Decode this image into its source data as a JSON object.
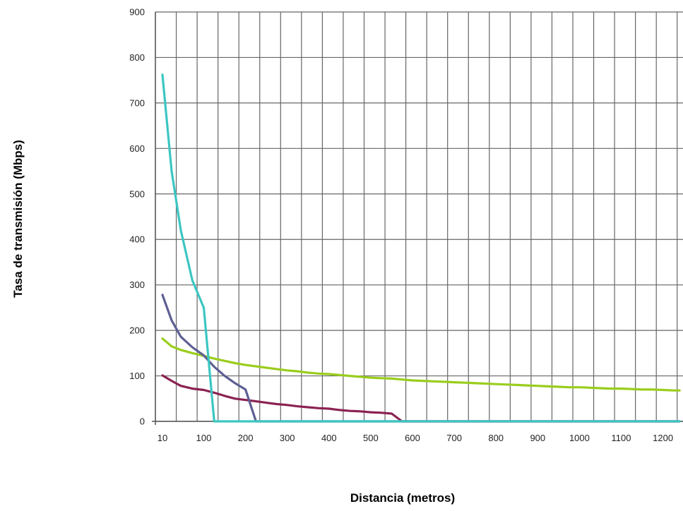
{
  "chart_data": {
    "type": "line",
    "title": "",
    "xlabel": "Distancia (metros)",
    "ylabel": "Tasa de transmisión (Mbps)",
    "ylim": [
      0,
      900
    ],
    "y_ticks": [
      0,
      100,
      200,
      300,
      400,
      500,
      600,
      700,
      800,
      900
    ],
    "x_tick_labels": [
      "10",
      "100",
      "200",
      "300",
      "400",
      "500",
      "600",
      "700",
      "800",
      "900",
      "1000",
      "1100",
      "1200"
    ],
    "x_ticks": [
      10,
      100,
      200,
      300,
      400,
      500,
      600,
      700,
      800,
      900,
      1000,
      1100,
      1200
    ],
    "xlim": [
      0,
      1240
    ],
    "grid": true,
    "legend": "none",
    "series": [
      {
        "color": "#9acd1c",
        "x": [
          10,
          30,
          50,
          75,
          100,
          125,
          150,
          175,
          200,
          225,
          250,
          275,
          300,
          325,
          350,
          375,
          400,
          425,
          450,
          475,
          500,
          525,
          550,
          575,
          600,
          625,
          650,
          675,
          700,
          725,
          750,
          775,
          800,
          825,
          850,
          875,
          900,
          925,
          950,
          975,
          1000,
          1025,
          1050,
          1075,
          1100,
          1125,
          1150,
          1175,
          1200,
          1225,
          1240
        ],
        "values": [
          182,
          165,
          157,
          150,
          144,
          138,
          133,
          128,
          124,
          121,
          118,
          115,
          112,
          110,
          107,
          105,
          104,
          102,
          100,
          98,
          96,
          95,
          94,
          92,
          90,
          89,
          88,
          87,
          86,
          85,
          84,
          83,
          82,
          81,
          80,
          79,
          78,
          77,
          76,
          75,
          75,
          74,
          73,
          72,
          72,
          71,
          70,
          70,
          69,
          68,
          68
        ]
      },
      {
        "color": "#8b2252",
        "x": [
          10,
          30,
          50,
          75,
          100,
          125,
          150,
          175,
          200,
          225,
          250,
          275,
          300,
          325,
          350,
          375,
          400,
          425,
          450,
          475,
          500,
          525,
          550,
          575,
          600,
          700,
          800,
          900,
          1000,
          1100,
          1240
        ],
        "values": [
          101,
          89,
          78,
          72,
          69,
          63,
          56,
          50,
          47,
          44,
          41,
          38,
          36,
          33,
          31,
          29,
          28,
          25,
          23,
          22,
          20,
          19,
          17,
          0,
          0,
          0,
          0,
          0,
          0,
          0,
          0
        ]
      },
      {
        "color": "#5e5f93",
        "x": [
          10,
          30,
          50,
          75,
          100,
          125,
          150,
          175,
          200,
          225,
          250,
          300,
          400,
          500,
          600,
          700,
          800,
          900,
          1000,
          1100,
          1240
        ],
        "values": [
          278,
          222,
          186,
          163,
          145,
          120,
          100,
          84,
          70,
          0,
          0,
          0,
          0,
          0,
          0,
          0,
          0,
          0,
          0,
          0,
          0
        ]
      },
      {
        "color": "#3cc6c2",
        "x": [
          10,
          30,
          50,
          75,
          100,
          125,
          150,
          200,
          300,
          400,
          500,
          600,
          700,
          800,
          900,
          1000,
          1100,
          1240
        ],
        "values": [
          762,
          550,
          420,
          310,
          250,
          0,
          0,
          0,
          0,
          0,
          0,
          0,
          0,
          0,
          0,
          0,
          0,
          0
        ]
      }
    ]
  }
}
